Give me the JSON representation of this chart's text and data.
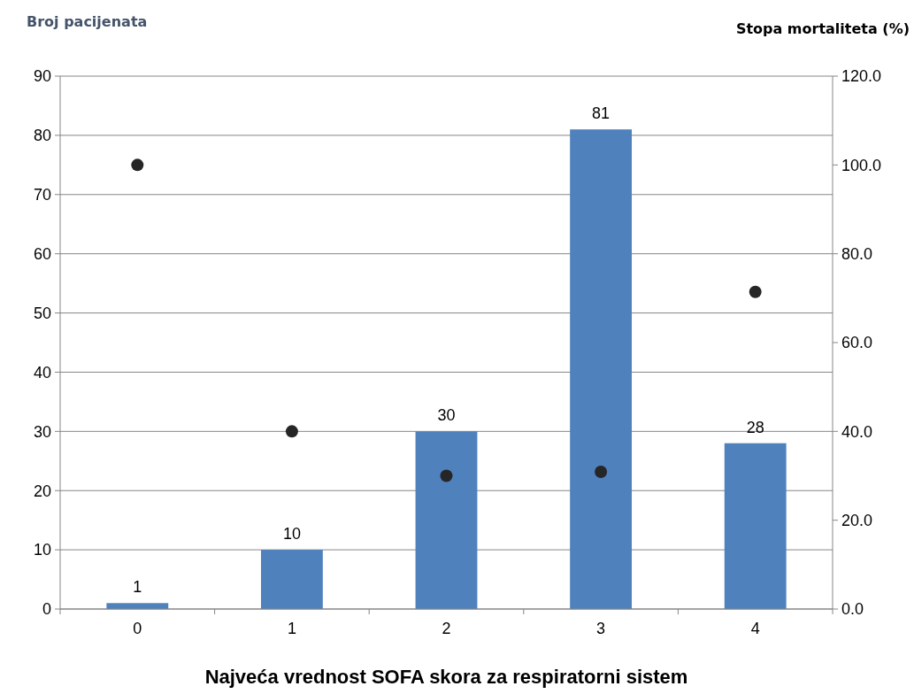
{
  "chart_data": {
    "type": "bar",
    "xlabel": "Najveća vrednost SOFA skora za respiratorni sistem",
    "ylabel": "Broj pacijenata",
    "y2label": "Stopa mortaliteta (%)",
    "categories": [
      "0",
      "1",
      "2",
      "3",
      "4"
    ],
    "series": [
      {
        "color": "#4f81bd",
        "values": [
          1,
          10,
          30,
          81,
          28
        ],
        "value_labels": [
          "1",
          "10",
          "30",
          "81",
          "28"
        ]
      },
      {
        "type": "scatter",
        "axis": "y2",
        "color": "#262626",
        "x": [
          "0",
          "1",
          "2",
          "3",
          "4"
        ],
        "values": [
          100,
          40,
          30,
          30.9,
          71.4
        ]
      }
    ],
    "ylim": [
      0,
      90
    ],
    "yticks": [
      0,
      10,
      20,
      30,
      40,
      50,
      60,
      70,
      80,
      90
    ],
    "y2lim": [
      0,
      120
    ],
    "y2ticks": [
      {
        "value": 0,
        "label": "0.0"
      },
      {
        "value": 20,
        "label": "20.0"
      },
      {
        "value": 40,
        "label": "40.0"
      },
      {
        "value": 60,
        "label": "60.0"
      },
      {
        "value": 80,
        "label": "80.0"
      },
      {
        "value": 100,
        "label": "100.0"
      },
      {
        "value": 120,
        "label": "120.0"
      }
    ],
    "grid": "y",
    "marker": "circle"
  }
}
